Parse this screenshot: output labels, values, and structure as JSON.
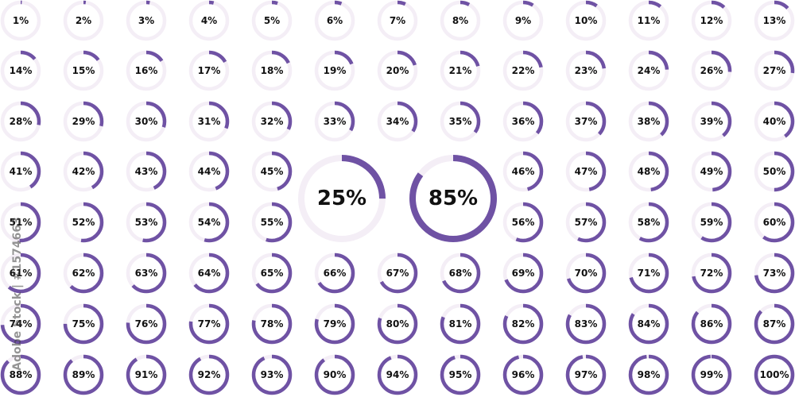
{
  "colors": {
    "fill": "#6f52a4",
    "track": "#f4eef6",
    "text": "#111111"
  },
  "grid": {
    "rows": [
      [
        "1%",
        "2%",
        "3%",
        "4%",
        "5%",
        "6%",
        "7%",
        "8%",
        "9%",
        "10%",
        "11%",
        "12%",
        "13%"
      ],
      [
        "14%",
        "15%",
        "16%",
        "17%",
        "18%",
        "19%",
        "20%",
        "21%",
        "22%",
        "23%",
        "24%",
        "26%",
        "27%"
      ],
      [
        "28%",
        "29%",
        "30%",
        "31%",
        "32%",
        "33%",
        "34%",
        "35%",
        "36%",
        "37%",
        "38%",
        "39%",
        "40%"
      ],
      [
        "41%",
        "42%",
        "43%",
        "44%",
        "45%",
        null,
        null,
        null,
        "46%",
        "47%",
        "48%",
        "49%",
        "50%"
      ],
      [
        "51%",
        "52%",
        "53%",
        "54%",
        "55%",
        null,
        null,
        null,
        "56%",
        "57%",
        "58%",
        "59%",
        "60%"
      ],
      [
        "61%",
        "62%",
        "63%",
        "64%",
        "65%",
        "66%",
        "67%",
        "68%",
        "69%",
        "70%",
        "71%",
        "72%",
        "73%"
      ],
      [
        "74%",
        "75%",
        "76%",
        "77%",
        "78%",
        "79%",
        "80%",
        "81%",
        "82%",
        "83%",
        "84%",
        "86%",
        "87%"
      ],
      [
        "88%",
        "89%",
        "91%",
        "92%",
        "93%",
        "90%",
        "94%",
        "95%",
        "96%",
        "97%",
        "98%",
        "99%",
        "100%"
      ]
    ]
  },
  "featured": [
    {
      "label": "25%",
      "value": 25
    },
    {
      "label": "85%",
      "value": 85
    }
  ],
  "watermark": {
    "text": "Adobe Stock | #1574663"
  }
}
